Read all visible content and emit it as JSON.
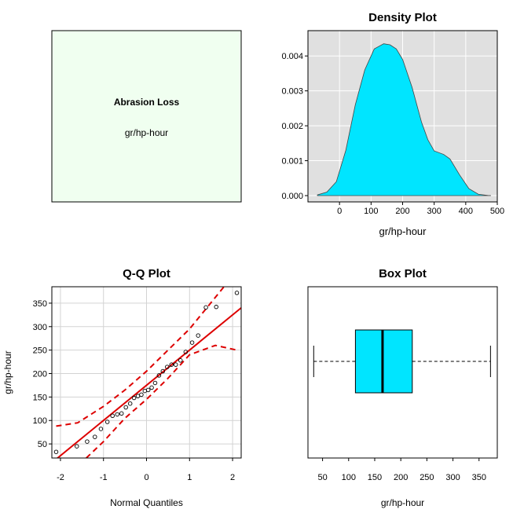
{
  "info_panel": {
    "title": "Abrasion Loss",
    "subtitle": "gr/hp-hour",
    "background": "#f0fff0"
  },
  "chart_data": [
    {
      "type": "area",
      "title": "Density Plot",
      "xlabel": "gr/hp-hour",
      "ylabel": "",
      "xlim": [
        -100,
        500
      ],
      "ylim": [
        0,
        0.0045
      ],
      "xticks": [
        0,
        100,
        200,
        300,
        400,
        500
      ],
      "yticks": [
        0.0,
        0.001,
        0.002,
        0.003,
        0.004
      ],
      "ytick_labels": [
        "0.000",
        "0.001",
        "0.002",
        "0.003",
        "0.004"
      ],
      "grid": true,
      "fill_color": "#00e5ff",
      "background": "#e0e0e0",
      "x": [
        -70,
        -40,
        -10,
        20,
        50,
        80,
        110,
        140,
        160,
        180,
        200,
        230,
        260,
        280,
        300,
        330,
        350,
        380,
        410,
        440,
        470,
        480
      ],
      "y": [
        2e-05,
        0.0001,
        0.0004,
        0.0013,
        0.0026,
        0.0036,
        0.0042,
        0.00435,
        0.00432,
        0.0042,
        0.0039,
        0.0031,
        0.0021,
        0.0016,
        0.00128,
        0.00118,
        0.00105,
        0.0006,
        0.0002,
        4e-05,
        5e-06,
        0.0
      ]
    },
    {
      "type": "scatter",
      "title": "Q-Q Plot",
      "xlabel": "Normal Quantiles",
      "ylabel": "gr/hp-hour",
      "xlim": [
        -2.2,
        2.2
      ],
      "ylim": [
        20,
        385
      ],
      "xticks": [
        -2,
        -1,
        0,
        1,
        2
      ],
      "yticks": [
        50,
        100,
        150,
        200,
        250,
        300,
        350
      ],
      "grid": true,
      "line_color": "#dd0000",
      "reference_line": {
        "intercept": 175,
        "slope": 75
      },
      "band_upper": {
        "x": [
          -2.1,
          -1.6,
          -1.0,
          -0.5,
          0.0,
          0.5,
          1.0,
          1.4,
          1.8,
          2.1
        ],
        "y": [
          88,
          95,
          130,
          165,
          205,
          250,
          295,
          340,
          385,
          400
        ]
      },
      "band_lower": {
        "x": [
          -1.4,
          -1.0,
          -0.5,
          0.0,
          0.5,
          1.0,
          1.6,
          2.1
        ],
        "y": [
          20,
          55,
          105,
          145,
          190,
          240,
          260,
          250
        ]
      },
      "points": [
        [
          -2.1,
          33
        ],
        [
          -1.62,
          45
        ],
        [
          -1.38,
          55
        ],
        [
          -1.2,
          65
        ],
        [
          -1.06,
          82
        ],
        [
          -0.91,
          97
        ],
        [
          -0.79,
          110
        ],
        [
          -0.68,
          113
        ],
        [
          -0.58,
          115
        ],
        [
          -0.48,
          128
        ],
        [
          -0.38,
          136
        ],
        [
          -0.29,
          148
        ],
        [
          -0.2,
          152
        ],
        [
          -0.12,
          155
        ],
        [
          -0.04,
          163
        ],
        [
          0.04,
          165
        ],
        [
          0.12,
          170
        ],
        [
          0.2,
          180
        ],
        [
          0.29,
          196
        ],
        [
          0.38,
          205
        ],
        [
          0.48,
          214
        ],
        [
          0.58,
          219
        ],
        [
          0.68,
          219
        ],
        [
          0.79,
          228
        ],
        [
          0.91,
          246
        ],
        [
          1.06,
          266
        ],
        [
          1.2,
          281
        ],
        [
          1.38,
          341
        ],
        [
          1.62,
          342
        ],
        [
          2.1,
          372
        ]
      ]
    },
    {
      "type": "box",
      "title": "Box Plot",
      "xlabel": "gr/hp-hour",
      "xlim": [
        22,
        385
      ],
      "xticks": [
        50,
        100,
        150,
        200,
        250,
        300,
        350
      ],
      "fill_color": "#00e5ff",
      "min": 33,
      "q1": 113,
      "median": 165,
      "q3": 222,
      "max": 372
    }
  ]
}
